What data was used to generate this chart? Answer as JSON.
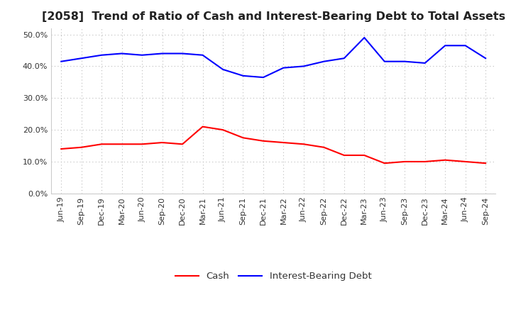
{
  "title": "[2058]  Trend of Ratio of Cash and Interest-Bearing Debt to Total Assets",
  "x_labels": [
    "Jun-19",
    "Sep-19",
    "Dec-19",
    "Mar-20",
    "Jun-20",
    "Sep-20",
    "Dec-20",
    "Mar-21",
    "Jun-21",
    "Sep-21",
    "Dec-21",
    "Mar-22",
    "Jun-22",
    "Sep-22",
    "Dec-22",
    "Mar-23",
    "Jun-23",
    "Sep-23",
    "Dec-23",
    "Mar-24",
    "Jun-24",
    "Sep-24"
  ],
  "cash": [
    0.14,
    0.145,
    0.155,
    0.155,
    0.155,
    0.16,
    0.155,
    0.21,
    0.2,
    0.175,
    0.165,
    0.16,
    0.155,
    0.145,
    0.12,
    0.12,
    0.095,
    0.1,
    0.1,
    0.105,
    0.1,
    0.095
  ],
  "debt": [
    0.415,
    0.425,
    0.435,
    0.44,
    0.435,
    0.44,
    0.44,
    0.435,
    0.39,
    0.37,
    0.365,
    0.395,
    0.4,
    0.415,
    0.425,
    0.49,
    0.415,
    0.415,
    0.41,
    0.465,
    0.465,
    0.425
  ],
  "cash_color": "#FF0000",
  "debt_color": "#0000FF",
  "ylim": [
    0.0,
    0.52
  ],
  "yticks": [
    0.0,
    0.1,
    0.2,
    0.3,
    0.4,
    0.5
  ],
  "background_color": "#FFFFFF",
  "plot_bg_color": "#FFFFFF",
  "grid_color": "#BBBBBB",
  "title_fontsize": 11.5,
  "tick_fontsize": 8,
  "legend_fontsize": 9.5
}
